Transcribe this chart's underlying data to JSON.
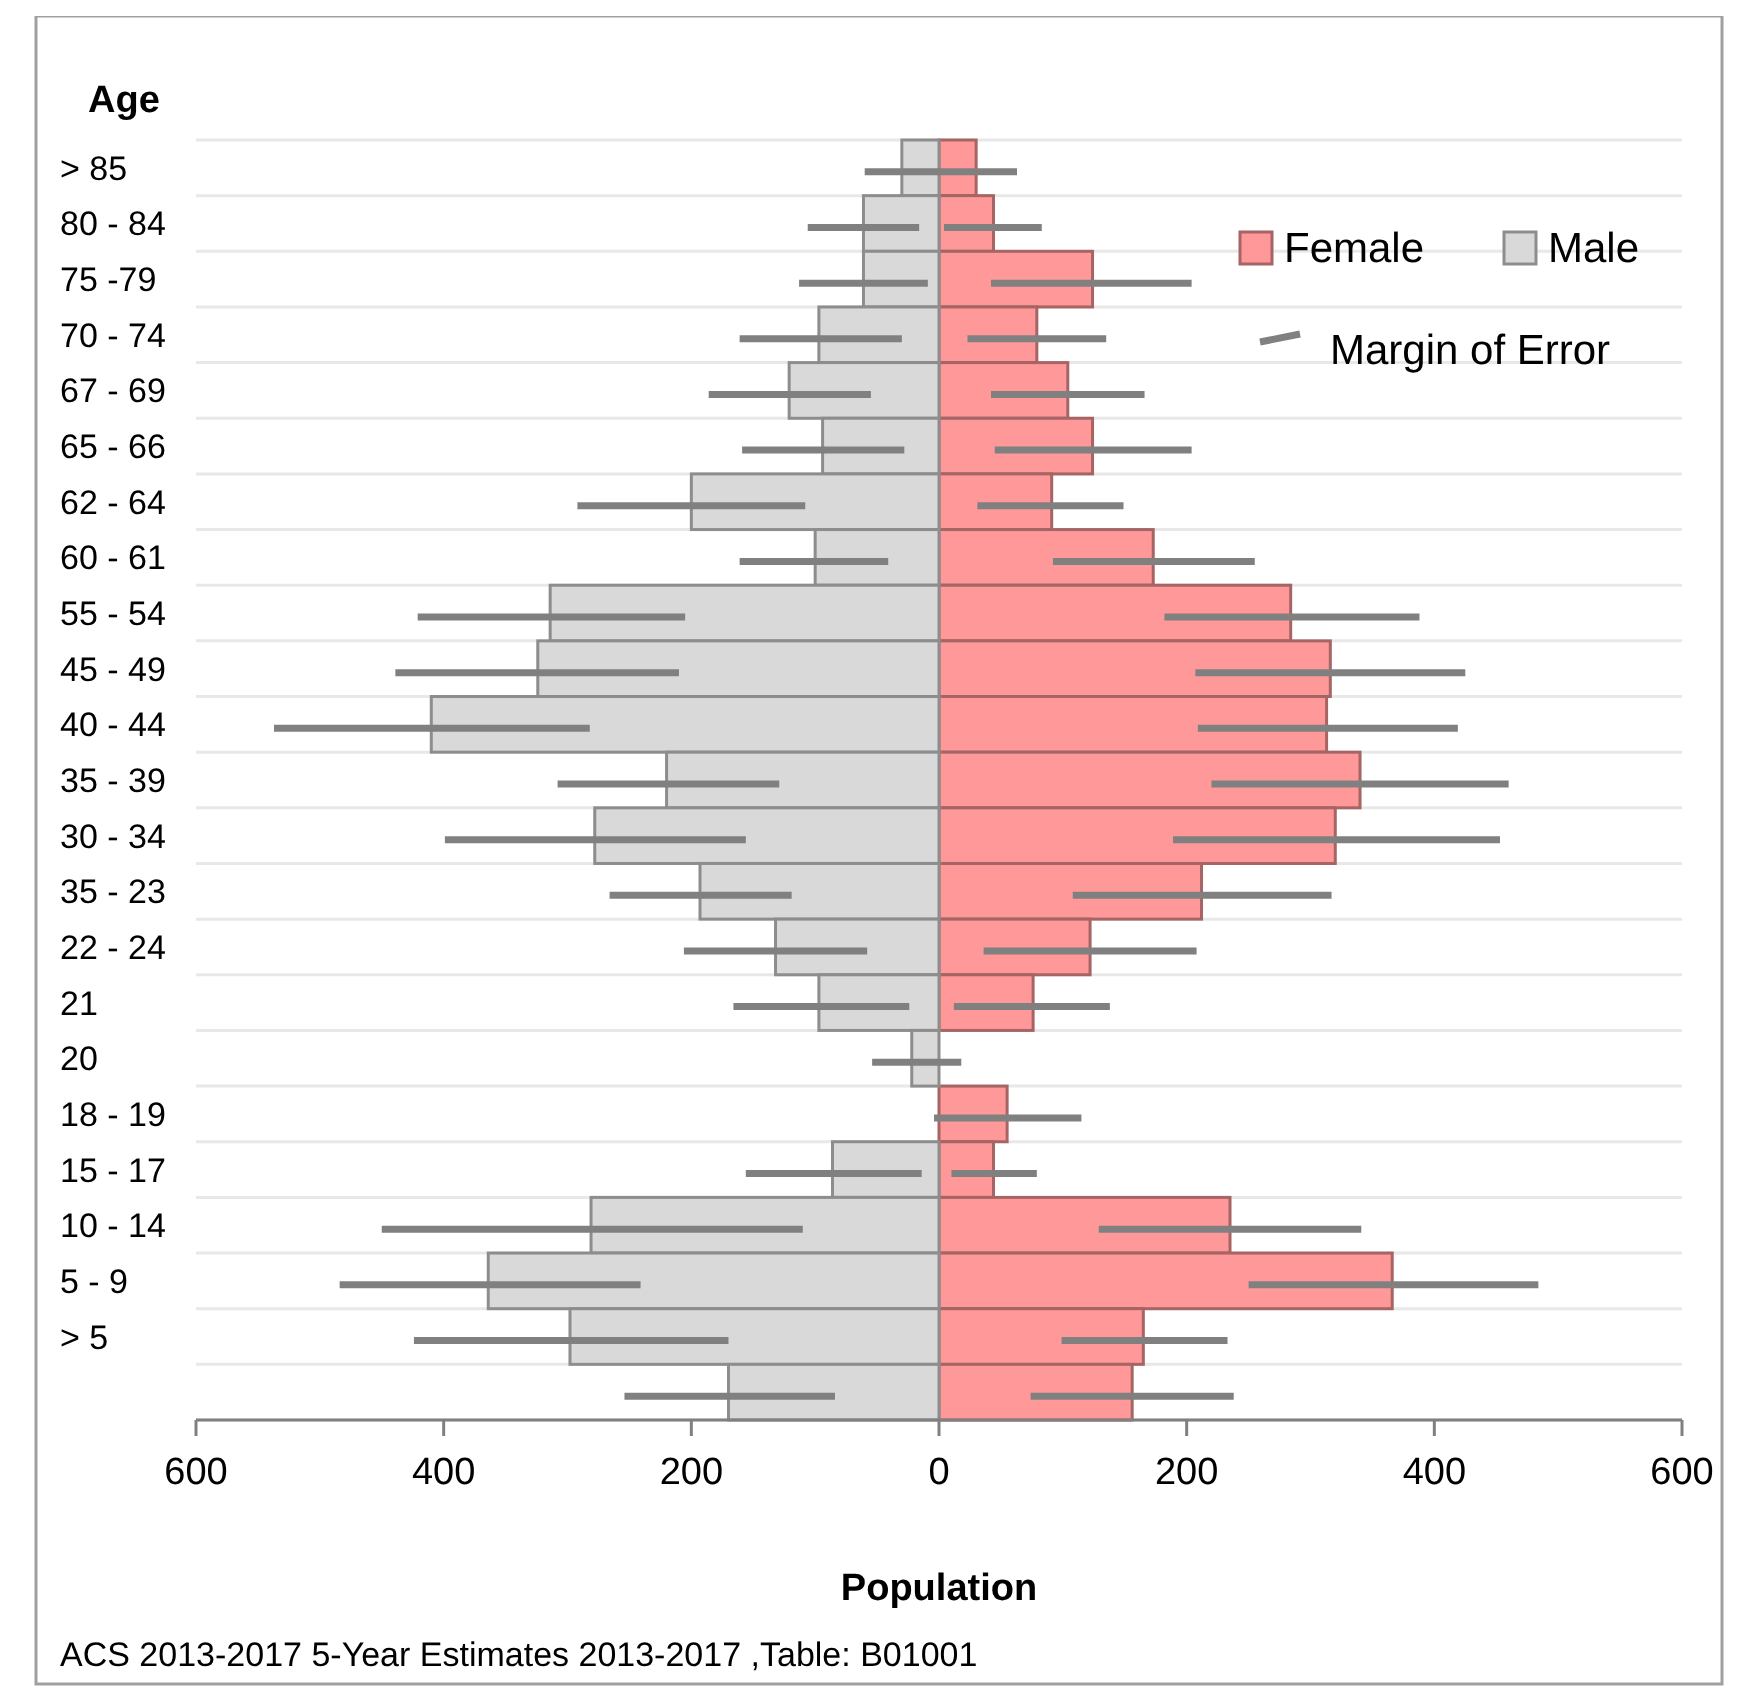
{
  "chart_data": {
    "type": "bar",
    "orientation": "horizontal",
    "ylabel": "Age",
    "xlabel": "Population",
    "categories": [
      "> 85",
      "80 - 84",
      "75 -79",
      "70 - 74",
      "67 - 69",
      "65 - 66",
      "62 - 64",
      "60 - 61",
      "55 - 54",
      "45 - 49",
      "40 - 44",
      "35 - 39",
      "30 - 34",
      "35 - 23",
      "22 - 24",
      "21",
      "20",
      "18 - 19",
      "15 - 17",
      "10 - 14",
      "5 - 9",
      "> 5",
      null
    ],
    "series": [
      {
        "name": "Female",
        "color": "#ff9999",
        "values": [
          30,
          44,
          124,
          79,
          104,
          124,
          91,
          173,
          284,
          316,
          313,
          340,
          320,
          212,
          122,
          76,
          0,
          55,
          44,
          235,
          366,
          165,
          156
        ],
        "errors": [
          null,
          [
            4,
            83
          ],
          [
            42,
            204
          ],
          [
            23,
            135
          ],
          [
            42,
            166
          ],
          [
            45,
            204
          ],
          [
            31,
            149
          ],
          [
            92,
            255
          ],
          [
            182,
            388
          ],
          [
            207,
            425
          ],
          [
            209,
            419
          ],
          [
            220,
            460
          ],
          [
            189,
            453
          ],
          [
            108,
            317
          ],
          [
            36,
            208
          ],
          [
            12,
            138
          ],
          null,
          [
            -4,
            115
          ],
          [
            10,
            79
          ],
          [
            129,
            341
          ],
          [
            250,
            484
          ],
          [
            99,
            233
          ],
          [
            74,
            238
          ]
        ]
      },
      {
        "name": "Male",
        "color": "#d9d9d9",
        "values": [
          -30,
          -61,
          -61,
          -97,
          -121,
          -94,
          -200,
          -100,
          -314,
          -324,
          -410,
          -220,
          -278,
          -193,
          -132,
          -97,
          -22,
          0,
          -86,
          -281,
          -364,
          -298,
          -170
        ],
        "errors": [
          [
            -60,
            63
          ],
          [
            -106,
            -16
          ],
          [
            -113,
            -9
          ],
          [
            -161,
            -30
          ],
          [
            -186,
            -55
          ],
          [
            -159,
            -28
          ],
          [
            -292,
            -108
          ],
          [
            -161,
            -41
          ],
          [
            -421,
            -205
          ],
          [
            -439,
            -210
          ],
          [
            -537,
            -282
          ],
          [
            -308,
            -129
          ],
          [
            -399,
            -156
          ],
          [
            -266,
            -119
          ],
          [
            -206,
            -58
          ],
          [
            -166,
            -24
          ],
          [
            -54,
            18
          ],
          null,
          [
            -156,
            -14
          ],
          [
            -450,
            -110
          ],
          [
            -484,
            -241
          ],
          [
            -424,
            -170
          ],
          [
            -254,
            -84
          ]
        ]
      }
    ],
    "xlim": [
      -600,
      600
    ],
    "xticks": [
      {
        "value": -600,
        "label": "600"
      },
      {
        "value": -400,
        "label": "400"
      },
      {
        "value": -200,
        "label": "200"
      },
      0,
      200,
      400,
      600
    ],
    "grid": "y",
    "legend": "top right",
    "stacked": true,
    "annotations": [
      "Margin of Error",
      "ACS 2013-2017 5-Year Estimates 2013-2017 ,Table:  B01001"
    ]
  }
}
